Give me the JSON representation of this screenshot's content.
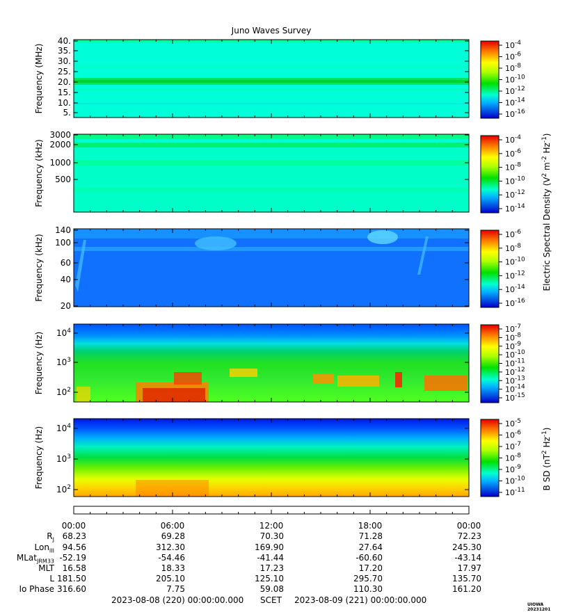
{
  "title": "Juno Waves Survey",
  "panels": [
    {
      "ylabel": "Frequency (MHz)",
      "yticks": [
        "5.",
        "10.",
        "15.",
        "20.",
        "25.",
        "30.",
        "35.",
        "40."
      ],
      "cbar_ticks": [
        "10^-4",
        "10^-6",
        "10^-8",
        "10^-10",
        "10^-12",
        "10^-14",
        "10^-16"
      ]
    },
    {
      "ylabel": "Frequency (kHz)",
      "yticks": [
        "500",
        "1000",
        "2000",
        "3000"
      ],
      "cbar_ticks": [
        "10^-4",
        "10^-6",
        "10^-8",
        "10^-10",
        "10^-12",
        "10^-14"
      ]
    },
    {
      "ylabel": "Frequency (kHz)",
      "yticks": [
        "20",
        "40",
        "60",
        "100",
        "140"
      ],
      "cbar_ticks": [
        "10^-6",
        "10^-8",
        "10^-10",
        "10^-12",
        "10^-14",
        "10^-16"
      ]
    },
    {
      "ylabel": "Frequency (Hz)",
      "yticks": [
        "10^2",
        "10^3",
        "10^4"
      ],
      "cbar_ticks": [
        "10^-7",
        "10^-8",
        "10^-9",
        "10^-10",
        "10^-11",
        "10^-12",
        "10^-13",
        "10^-14",
        "10^-15"
      ]
    },
    {
      "ylabel": "Frequency (Hz)",
      "yticks": [
        "10^2",
        "10^3",
        "10^4"
      ],
      "cbar_ticks": [
        "10^-5",
        "10^-6",
        "10^-7",
        "10^-8",
        "10^-9",
        "10^-10",
        "10^-11"
      ]
    }
  ],
  "cbar_label_electric": "Electric Spectral Density (V^2 m^-2 Hz^-1)",
  "cbar_label_magnetic": "B SD (nT^2 Hz^-1)",
  "ephemeris": {
    "times": [
      "00:00",
      "06:00",
      "12:00",
      "18:00",
      "00:00"
    ],
    "rows": [
      {
        "label": "R_J",
        "values": [
          "68.23",
          "69.28",
          "70.30",
          "71.28",
          "72.23"
        ]
      },
      {
        "label": "Lon_III",
        "values": [
          "94.56",
          "312.30",
          "169.90",
          "27.64",
          "245.30"
        ]
      },
      {
        "label": "MLat_JRM33",
        "values": [
          "-52.19",
          "-54.46",
          "-41.44",
          "-60.60",
          "-43.14"
        ]
      },
      {
        "label": "MLT",
        "values": [
          "16.58",
          "18.33",
          "17.23",
          "17.20",
          "17.97"
        ]
      },
      {
        "label": "L",
        "values": [
          "181.50",
          "205.10",
          "125.10",
          "295.70",
          "135.70"
        ]
      },
      {
        "label": "Io Phase",
        "values": [
          "316.60",
          "7.75",
          "59.08",
          "110.30",
          "161.20"
        ]
      }
    ]
  },
  "footer": {
    "start": "2023-08-08 (220) 00:00:00.000",
    "scet": "SCET",
    "end": "2023-08-09 (221) 00:00:00.000"
  },
  "credit": "UIOWA 20231201",
  "chart_data": {
    "type": "heatmap",
    "title": "Juno Waves Survey",
    "x_range": [
      "2023-08-08 00:00",
      "2023-08-09 00:00"
    ],
    "panels": [
      {
        "ylabel": "Frequency (MHz)",
        "ylim": [
          3.5,
          41
        ],
        "yscale": "linear",
        "zlim": [
          "1e-17",
          "1e-4"
        ],
        "zlabel": "Electric Spectral Density (V^2 m^-2 Hz^-1)"
      },
      {
        "ylabel": "Frequency (kHz)",
        "ylim": [
          150,
          3000
        ],
        "yscale": "log",
        "zlim": [
          "1e-15",
          "1e-4"
        ],
        "zlabel": "Electric Spectral Density (V^2 m^-2 Hz^-1)"
      },
      {
        "ylabel": "Frequency (kHz)",
        "ylim": [
          20,
          140
        ],
        "yscale": "log",
        "zlim": [
          "1e-16",
          "1e-6"
        ],
        "zlabel": "Electric Spectral Density (V^2 m^-2 Hz^-1)"
      },
      {
        "ylabel": "Frequency (Hz)",
        "ylim": [
          50,
          20000
        ],
        "yscale": "log",
        "zlim": [
          "1e-15",
          "1e-7"
        ],
        "zlabel": "Electric Spectral Density (V^2 m^-2 Hz^-1)"
      },
      {
        "ylabel": "Frequency (Hz)",
        "ylim": [
          50,
          20000
        ],
        "yscale": "log",
        "zlim": [
          "1e-11",
          "3e-5"
        ],
        "zlabel": "B SD (nT^2 Hz^-1)"
      }
    ]
  }
}
